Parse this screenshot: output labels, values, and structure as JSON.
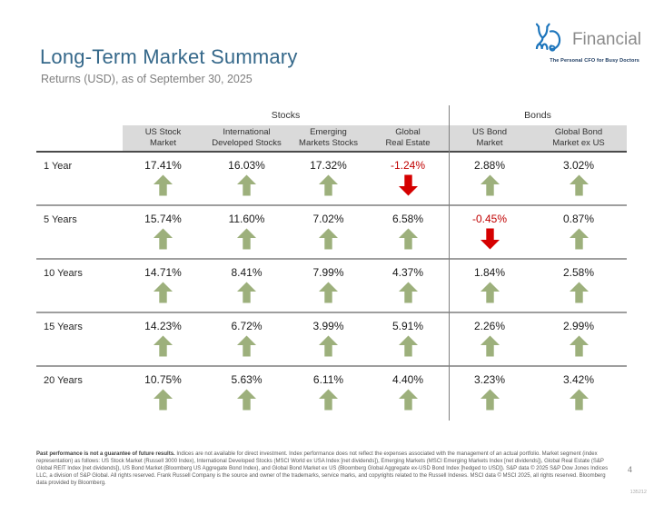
{
  "page": {
    "title": "Long-Term Market Summary",
    "subtitle": "Returns (USD), as of September 30, 2025",
    "page_number": "4",
    "doc_code": "135212"
  },
  "logo": {
    "brand": "Financial",
    "tagline": "The Personal CFO for Busy Doctors",
    "icon": "md-stethoscope-logo-icon",
    "brand_color": "#1C75BC",
    "text_color": "#8C8C8C"
  },
  "table": {
    "group_headers": [
      {
        "label": "Stocks",
        "span": 4
      },
      {
        "label": "Bonds",
        "span": 2
      }
    ],
    "columns": [
      {
        "label": "US Stock Market",
        "lines": [
          "US Stock",
          "Market"
        ]
      },
      {
        "label": "International Developed Stocks",
        "lines": [
          "International",
          "Developed Stocks"
        ]
      },
      {
        "label": "Emerging Markets Stocks",
        "lines": [
          "Emerging",
          "Markets Stocks"
        ]
      },
      {
        "label": "Global Real Estate",
        "lines": [
          "Global",
          "Real Estate"
        ]
      },
      {
        "label": "US Bond Market",
        "lines": [
          "US Bond",
          "Market"
        ]
      },
      {
        "label": "Global Bond Market ex US",
        "lines": [
          "Global Bond",
          "Market ex US"
        ]
      }
    ],
    "rows": [
      {
        "label": "1 Year",
        "values": [
          "17.41%",
          "16.03%",
          "17.32%",
          "-1.24%",
          "2.88%",
          "3.02%"
        ]
      },
      {
        "label": "5 Years",
        "values": [
          "15.74%",
          "11.60%",
          "7.02%",
          "6.58%",
          "-0.45%",
          "0.87%"
        ]
      },
      {
        "label": "10 Years",
        "values": [
          "14.71%",
          "8.41%",
          "7.99%",
          "4.37%",
          "1.84%",
          "2.58%"
        ]
      },
      {
        "label": "15 Years",
        "values": [
          "14.23%",
          "6.72%",
          "3.99%",
          "5.91%",
          "2.26%",
          "2.99%"
        ]
      },
      {
        "label": "20 Years",
        "values": [
          "10.75%",
          "5.63%",
          "6.11%",
          "4.40%",
          "3.23%",
          "3.42%"
        ]
      }
    ]
  },
  "colors": {
    "title": "#35688A",
    "header_band": "#DADADA",
    "positive_arrow": "#9DB07C",
    "negative_arrow": "#D50000",
    "negative_text": "#C00000"
  },
  "footer": {
    "disclaimer_bold": "Past performance is not a guarantee of future results.",
    "disclaimer_rest": " Indices are not available for direct investment. Index performance does not reflect the expenses associated with the management of an actual portfolio. Market segment (index representation) as follows: US Stock Market (Russell 3000 Index), International Developed Stocks (MSCI World ex USA Index [net dividends]), Emerging Markets (MSCI Emerging Markets Index [net dividends]), Global Real Estate (S&P Global REIT Index [net dividends]), US Bond Market (Bloomberg US Aggregate Bond Index), and Global Bond Market ex US (Bloomberg Global Aggregate ex-USD Bond Index [hedged to USD]). S&P data © 2025 S&P Dow Jones Indices LLC, a division of S&P Global. All rights reserved. Frank Russell Company is the source and owner of the trademarks, service marks, and copyrights related to the Russell Indexes. MSCI data © MSCI 2025, all rights reserved. Bloomberg data provided by Bloomberg."
  }
}
